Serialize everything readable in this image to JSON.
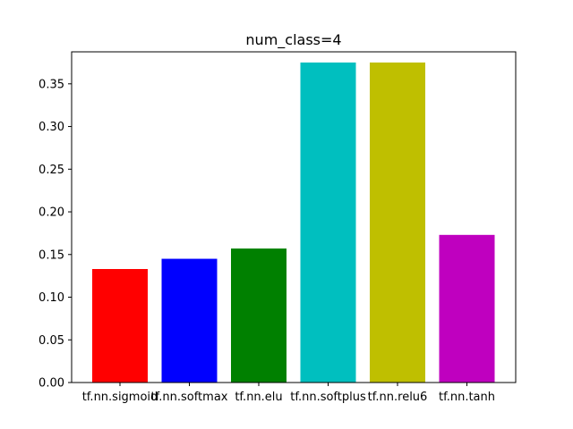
{
  "chart_data": {
    "type": "bar",
    "title": "num_class=4",
    "xlabel": "",
    "ylabel": "",
    "categories": [
      "tf.nn.sigmoid",
      "tf.nn.softmax",
      "tf.nn.elu",
      "tf.nn.softplus",
      "tf.nn.relu6",
      "tf.nn.tanh"
    ],
    "values": [
      0.133,
      0.145,
      0.157,
      0.375,
      0.375,
      0.173
    ],
    "colors": [
      "#ff0000",
      "#0000ff",
      "#008000",
      "#00bfbf",
      "#bfbf00",
      "#bf00bf"
    ],
    "ylim": [
      0,
      0.3875
    ],
    "yticks": [
      0.0,
      0.05,
      0.1,
      0.15,
      0.2,
      0.25,
      0.3,
      0.35
    ],
    "ytick_labels": [
      "0.00",
      "0.05",
      "0.10",
      "0.15",
      "0.20",
      "0.25",
      "0.30",
      "0.35"
    ],
    "grid": false,
    "legend": "none"
  }
}
